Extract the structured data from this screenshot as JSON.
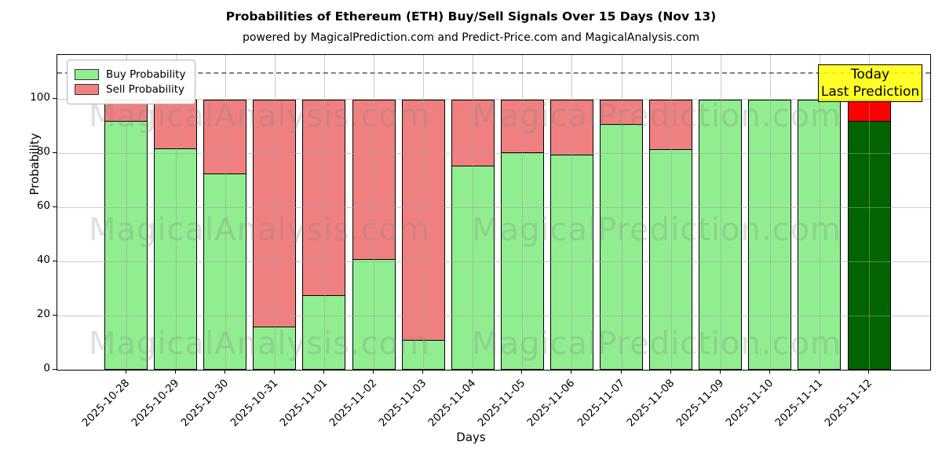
{
  "title": "Probabilities of Ethereum (ETH) Buy/Sell Signals Over 15 Days (Nov 13)",
  "subtitle": "powered by MagicalPrediction.com and Predict-Price.com and MagicalAnalysis.com",
  "legend": {
    "items": [
      {
        "label": "Buy Probability",
        "color": "#90EE90"
      },
      {
        "label": "Sell Probability",
        "color": "#F08080"
      }
    ]
  },
  "annotation": {
    "line1": "Today",
    "line2": "Last Prediction",
    "bg": "#FFFF00"
  },
  "watermarks": {
    "left_text": "MagicalAnalysis.com",
    "right_text": "MagicalPrediction.com"
  },
  "axes": {
    "ylabel": "Probability",
    "xlabel": "Days",
    "yticks": [
      0,
      20,
      40,
      60,
      80,
      100
    ],
    "ymax": 116.4,
    "dashed_line_y": 110,
    "grid": true
  },
  "colors": {
    "buy": "#90EE90",
    "sell": "#F08080",
    "today_buy": "#006400",
    "today_sell": "#FF0000",
    "edge": "#000000",
    "grid": "#a0a0a0",
    "dashed": "#7f7f7f"
  },
  "chart_data": {
    "type": "bar",
    "stacked": true,
    "title": "Probabilities of Ethereum (ETH) Buy/Sell Signals Over 15 Days (Nov 13)",
    "xlabel": "Days",
    "ylabel": "Probability",
    "ylim": [
      0,
      116.4
    ],
    "categories": [
      "2025-10-28",
      "2025-10-29",
      "2025-10-30",
      "2025-10-31",
      "2025-11-01",
      "2025-11-02",
      "2025-11-03",
      "2025-11-04",
      "2025-11-05",
      "2025-11-06",
      "2025-11-07",
      "2025-11-08",
      "2025-11-09",
      "2025-11-10",
      "2025-11-11",
      "2025-11-12"
    ],
    "series": [
      {
        "name": "Buy Probability",
        "values": [
          92,
          82,
          72.5,
          16,
          27.5,
          41,
          11,
          75.5,
          80.5,
          79.5,
          91,
          81.5,
          100,
          100,
          100,
          92
        ]
      },
      {
        "name": "Sell Probability",
        "values": [
          8,
          18,
          27.5,
          84,
          72.5,
          59,
          89,
          24.5,
          19.5,
          20.5,
          9,
          18.5,
          0,
          0,
          0,
          8
        ]
      }
    ],
    "today_index": 15,
    "legend_position": "upper left"
  }
}
